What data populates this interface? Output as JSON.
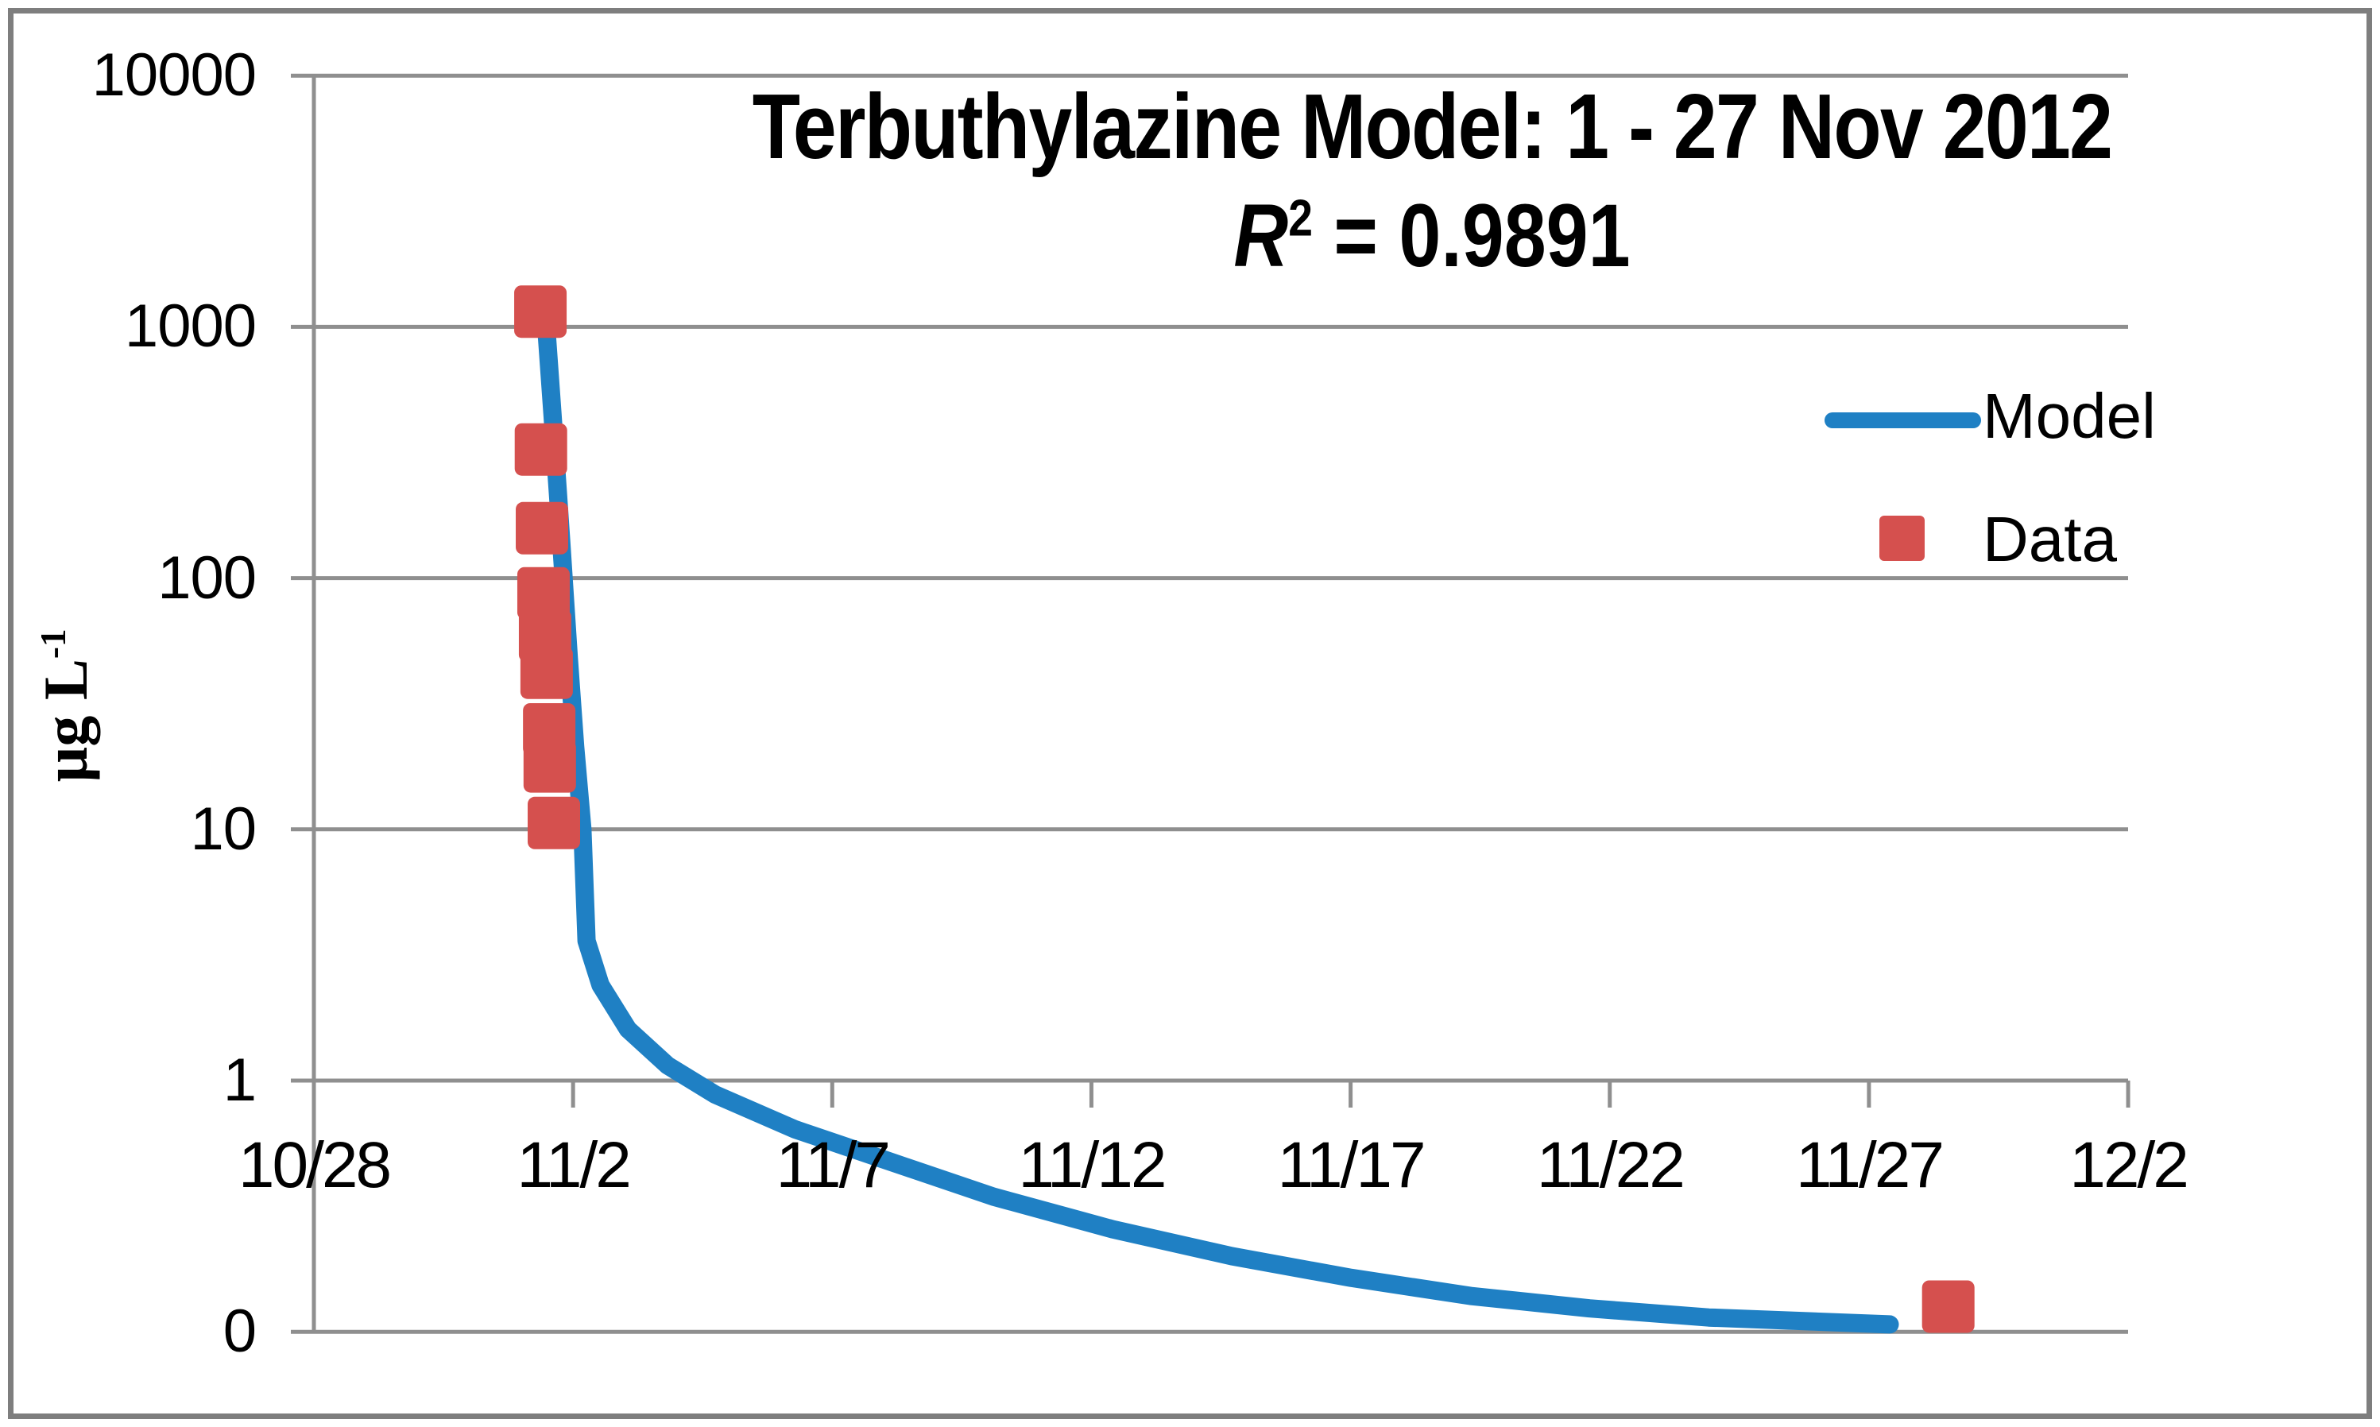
{
  "title": {
    "line1": "Terbuthylazine Model: 1 - 27 Nov 2012",
    "r2_var": "R",
    "r2_exp": "2",
    "r2_rest": " = 0.9891"
  },
  "y_axis": {
    "unit_main": "µg L",
    "unit_exp": "-1",
    "tick_labels": [
      "10000",
      "1000",
      "100",
      "10",
      "1",
      "0"
    ]
  },
  "x_axis": {
    "tick_labels": [
      "10/28",
      "11/2",
      "11/7",
      "11/12",
      "11/17",
      "11/22",
      "11/27",
      "12/2"
    ]
  },
  "legend": {
    "items": [
      {
        "label": "Model",
        "type": "line",
        "color": "#1f80c4"
      },
      {
        "label": "Data",
        "type": "square",
        "color": "#d5504e"
      }
    ]
  },
  "colors": {
    "model_line": "#1f80c4",
    "data_marker": "#d5504e",
    "gridline": "#8f8f8f",
    "axis": "#8f8f8f",
    "border": "#7e7e7e",
    "text": "#000000",
    "background": "#ffffff"
  },
  "chart_data": {
    "type": "line+scatter",
    "title": "Terbuthylazine Model: 1 - 27 Nov 2012",
    "subtitle": "R2 = 0.9891",
    "ylabel": "µg L-1",
    "y_scale": "log",
    "ylim": [
      0.1,
      10000
    ],
    "y_gridline_values": [
      10000,
      1000,
      100,
      10,
      1,
      0.1
    ],
    "y_tick_labels": [
      "10000",
      "1000",
      "100",
      "10",
      "1",
      "0"
    ],
    "x_tick_days": [
      0,
      5,
      10,
      15,
      20,
      25,
      30,
      35
    ],
    "x_tick_labels": [
      "10/28",
      "11/2",
      "11/7",
      "11/12",
      "11/17",
      "11/22",
      "11/27",
      "12/2"
    ],
    "x_unit": "days since 10/28/2012",
    "x_axis_crosses_at_y": 1,
    "grid": true,
    "legend_position": "right-middle",
    "series": [
      {
        "name": "Model",
        "type": "line",
        "points": [
          [
            4.46,
            1170
          ],
          [
            4.6,
            456
          ],
          [
            4.77,
            142
          ],
          [
            4.92,
            47.5
          ],
          [
            5.04,
            21.3
          ],
          [
            5.18,
            10.0
          ],
          [
            5.26,
            3.6
          ],
          [
            5.53,
            2.4
          ],
          [
            6.06,
            1.6
          ],
          [
            6.82,
            1.15
          ],
          [
            7.74,
            0.88
          ],
          [
            9.28,
            0.64
          ],
          [
            10.81,
            0.5
          ],
          [
            13.11,
            0.345
          ],
          [
            15.41,
            0.256
          ],
          [
            17.71,
            0.2
          ],
          [
            20.01,
            0.164
          ],
          [
            22.31,
            0.139
          ],
          [
            24.61,
            0.124
          ],
          [
            26.91,
            0.114
          ],
          [
            28.9,
            0.11
          ],
          [
            30.4,
            0.107
          ]
        ]
      },
      {
        "name": "Data",
        "type": "scatter",
        "points": [
          [
            4.37,
            1150
          ],
          [
            4.38,
            325
          ],
          [
            4.4,
            158
          ],
          [
            4.43,
            87
          ],
          [
            4.46,
            59
          ],
          [
            4.49,
            42
          ],
          [
            4.54,
            25
          ],
          [
            4.55,
            17.8
          ],
          [
            4.63,
            10.6
          ],
          [
            31.53,
            0.126
          ]
        ]
      }
    ]
  }
}
